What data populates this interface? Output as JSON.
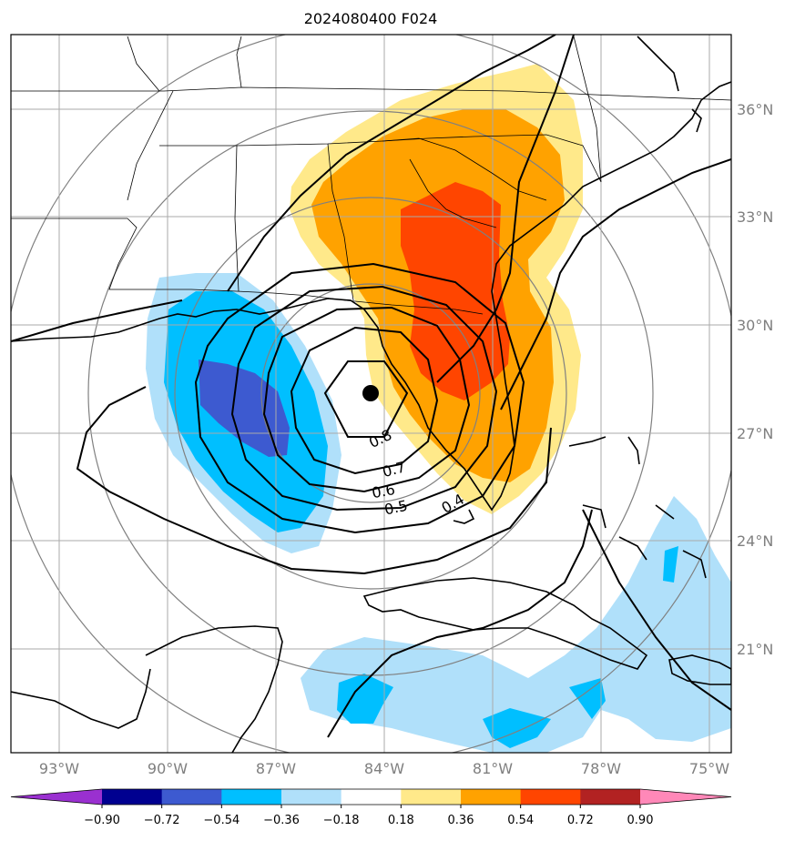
{
  "title": "2024080400 F024",
  "map": {
    "lon_labels": [
      "93°W",
      "90°W",
      "87°W",
      "84°W",
      "81°W",
      "78°W",
      "75°W"
    ],
    "lat_labels": [
      "36°N",
      "33°N",
      "30°N",
      "27°N",
      "24°N",
      "21°N"
    ],
    "contour_labels": [
      "0.8",
      "0.7",
      "0.6",
      "0.5",
      "0.4"
    ],
    "storm_center": {
      "lon": -84.3,
      "lat": 28.1
    }
  },
  "colorbar": {
    "ticks": [
      "−0.90",
      "−0.72",
      "−0.54",
      "−0.36",
      "−0.18",
      "0.18",
      "0.36",
      "0.54",
      "0.72",
      "0.90"
    ],
    "colors": [
      "#9a30d0",
      "#000090",
      "#3d5ad0",
      "#00bfff",
      "#b0e0fa",
      "#ffffff",
      "#ffe98a",
      "#ffa200",
      "#ff4500",
      "#b22222",
      "#ff88b8"
    ],
    "extend": "both"
  },
  "colors": {
    "neg_light": "#b0e0fa",
    "neg_mid": "#00bfff",
    "neg_dark": "#3d5ad0",
    "pos_light": "#ffe98a",
    "pos_mid": "#ffa200",
    "pos_dark": "#ff4500",
    "grid": "#aaaaaa",
    "range_ring": "#808080"
  }
}
